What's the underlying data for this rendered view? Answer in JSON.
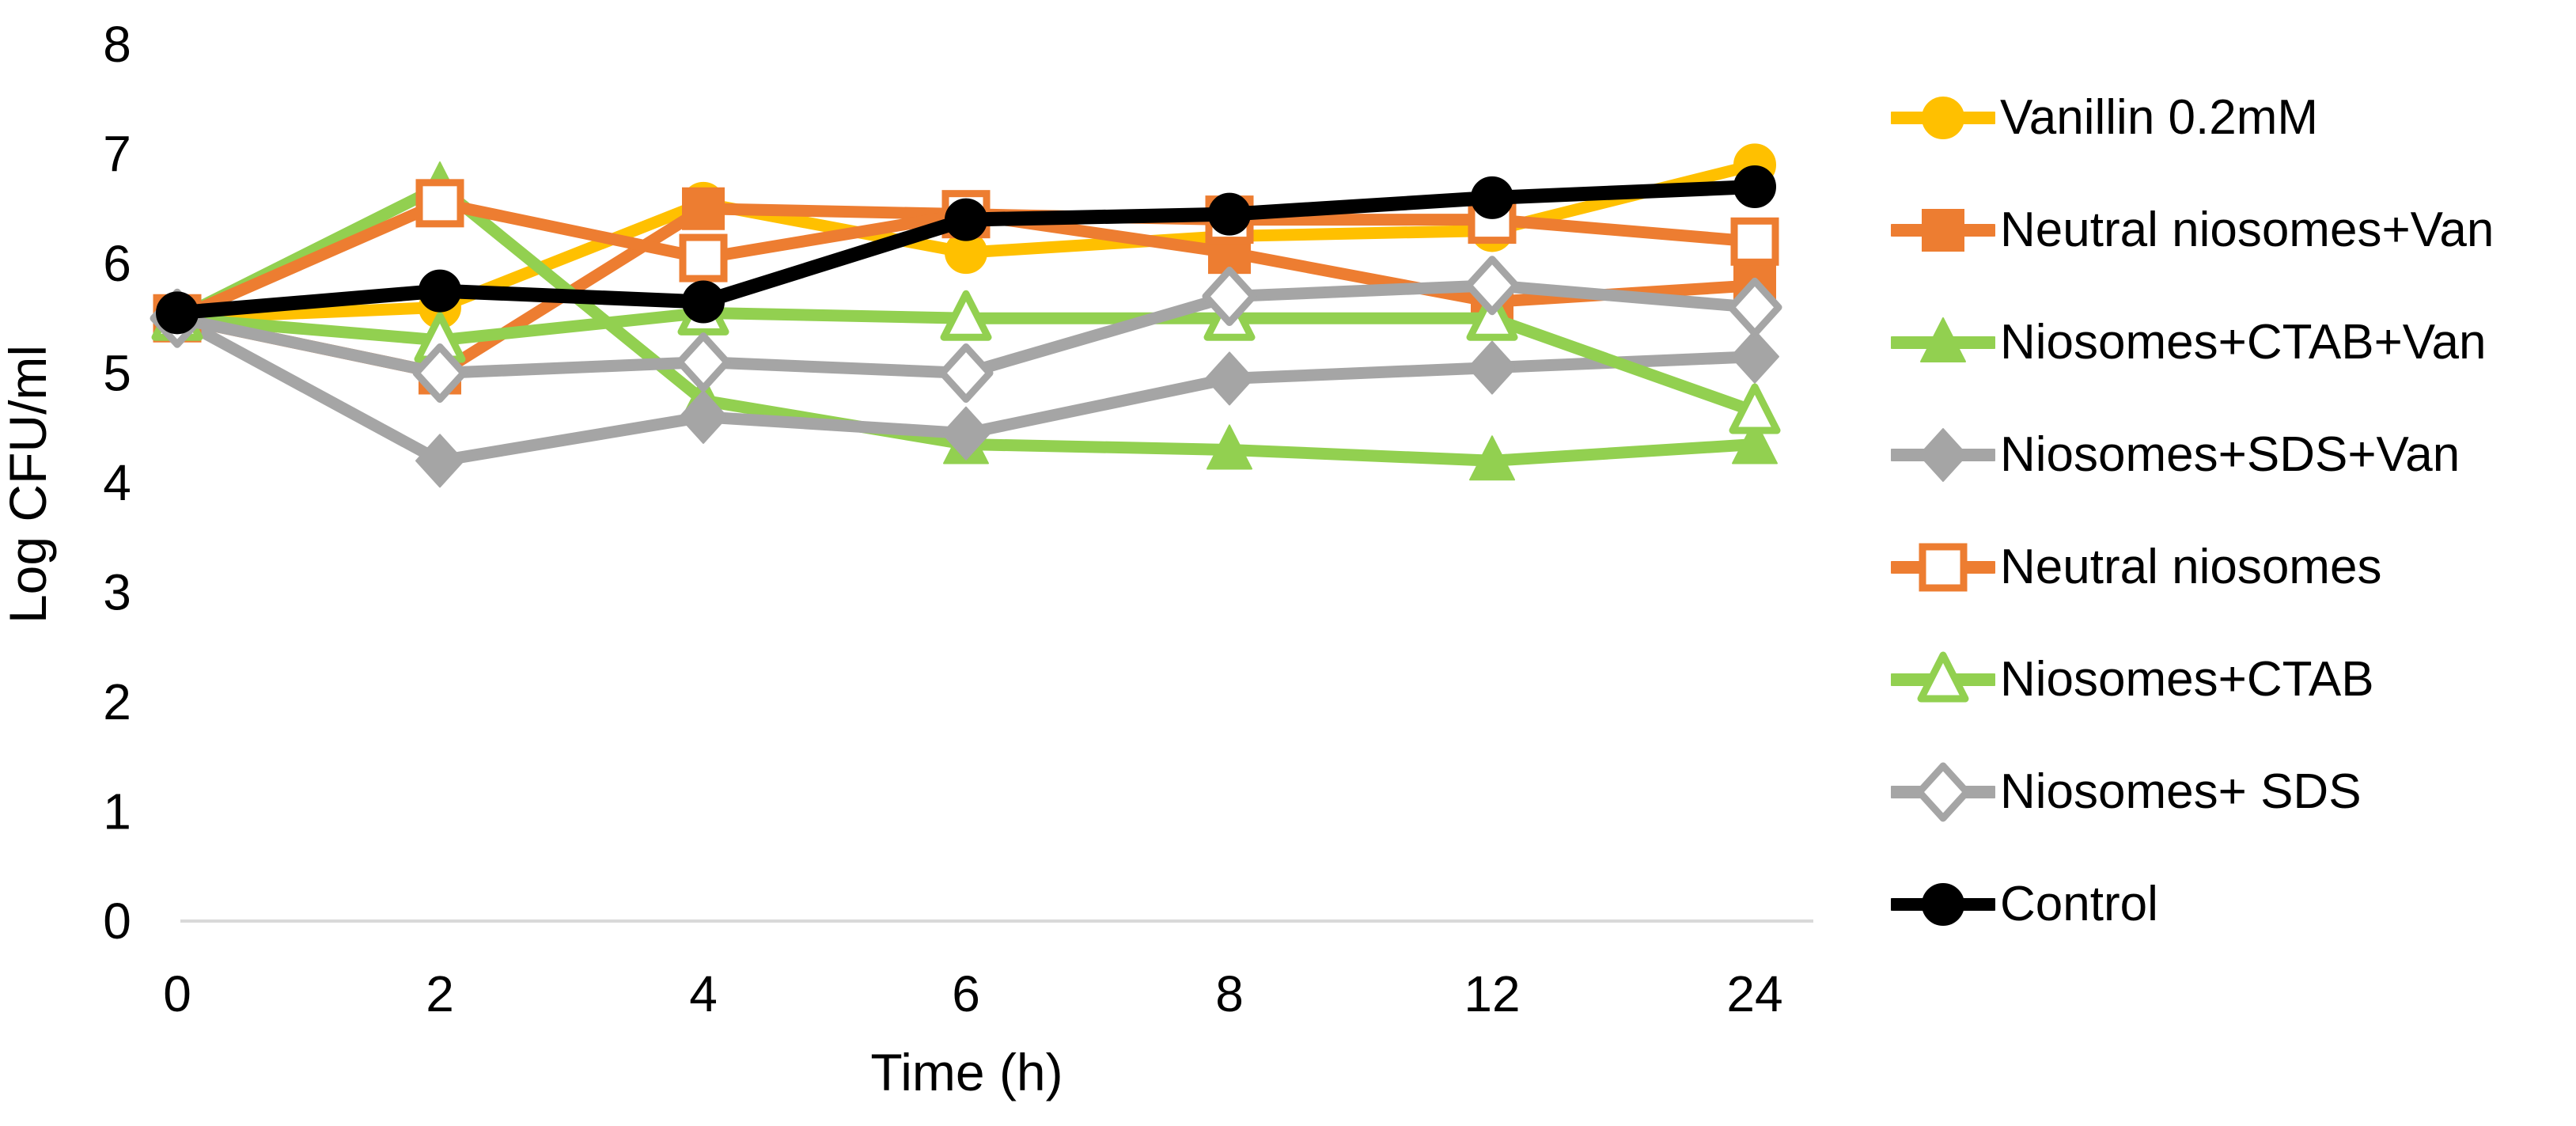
{
  "chart_data": {
    "type": "line",
    "title": "",
    "xlabel": "Time (h)",
    "ylabel": "Log CFU/ml",
    "categories": [
      "0",
      "2",
      "4",
      "6",
      "8",
      "12",
      "24"
    ],
    "y_ticks": [
      "0",
      "1",
      "2",
      "3",
      "4",
      "5",
      "6",
      "7",
      "8"
    ],
    "ylim": [
      0,
      8
    ],
    "grid": "baseline-only",
    "legend_position": "right",
    "baseline_color": "#d9d9d9",
    "series": [
      {
        "name": "Vanillin 0.2mM",
        "color": "#FFC000",
        "marker": "circle",
        "marker_fill": "filled",
        "values": [
          5.5,
          5.6,
          6.55,
          6.1,
          6.25,
          6.3,
          6.9
        ]
      },
      {
        "name": "Neutral niosomes+Van",
        "color": "#ED7D31",
        "marker": "square",
        "marker_fill": "filled",
        "values": [
          5.5,
          5.0,
          6.5,
          6.45,
          6.1,
          5.65,
          5.8
        ]
      },
      {
        "name": "Niosomes+CTAB+Van",
        "color": "#92D050",
        "marker": "triangle",
        "marker_fill": "filled",
        "values": [
          5.5,
          6.7,
          4.75,
          4.35,
          4.3,
          4.2,
          4.35
        ]
      },
      {
        "name": "Niosomes+SDS+Van",
        "color": "#A5A5A5",
        "marker": "diamond",
        "marker_fill": "filled",
        "values": [
          5.5,
          4.2,
          4.6,
          4.45,
          4.95,
          5.05,
          5.15
        ]
      },
      {
        "name": "Neutral niosomes",
        "color": "#ED7D31",
        "marker": "square",
        "marker_fill": "open",
        "values": [
          5.5,
          6.55,
          6.05,
          6.45,
          6.4,
          6.4,
          6.2
        ]
      },
      {
        "name": "Niosomes+CTAB",
        "color": "#92D050",
        "marker": "triangle",
        "marker_fill": "open",
        "values": [
          5.5,
          5.3,
          5.55,
          5.5,
          5.5,
          5.5,
          4.65
        ]
      },
      {
        "name": "Niosomes+ SDS",
        "color": "#A5A5A5",
        "marker": "diamond",
        "marker_fill": "open",
        "values": [
          5.5,
          5.0,
          5.1,
          5.0,
          5.7,
          5.8,
          5.6
        ]
      },
      {
        "name": "Control",
        "color": "#000000",
        "marker": "circle",
        "marker_fill": "filled",
        "values": [
          5.55,
          5.75,
          5.65,
          6.4,
          6.45,
          6.6,
          6.7
        ]
      }
    ]
  }
}
